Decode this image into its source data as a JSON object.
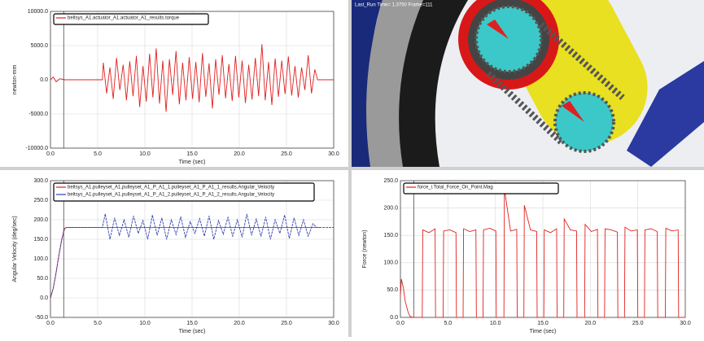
{
  "viewport": {
    "caption": "Last_Run  Time= 1.3750  Frame=111"
  },
  "chart_data": [
    {
      "type": "line",
      "ylabel": "newton-mm",
      "xlabel": "Time (sec)",
      "xlim": [
        0,
        30
      ],
      "ylim": [
        -10000,
        10000
      ],
      "xticks": [
        {
          "value": 0,
          "label": "0.0"
        },
        {
          "value": 5,
          "label": "5.0"
        },
        {
          "value": 10,
          "label": "10.0"
        },
        {
          "value": 15,
          "label": "15.0"
        },
        {
          "value": 20,
          "label": "20.0"
        },
        {
          "value": 25,
          "label": "25.0"
        },
        {
          "value": 30,
          "label": "30.0"
        }
      ],
      "yticks": [
        {
          "value": -10000,
          "label": "-10000.0"
        },
        {
          "value": -5000,
          "label": "-5000.0"
        },
        {
          "value": 0,
          "label": "0.0"
        },
        {
          "value": 5000,
          "label": "5000.0"
        },
        {
          "value": 10000,
          "label": "10000.0"
        }
      ],
      "grid": true,
      "series": [
        {
          "name": "beltsys_A1.actuator_A1.actuator_A1_results.torque",
          "color": "#e02020",
          "x": [
            0,
            0.3,
            0.6,
            1.0,
            1.5,
            2,
            3,
            4,
            5,
            5.5,
            5.6,
            5.95,
            6.3,
            6.65,
            7.0,
            7.35,
            7.7,
            8.05,
            8.4,
            8.75,
            9.1,
            9.45,
            9.8,
            10.15,
            10.5,
            10.85,
            11.2,
            11.55,
            11.9,
            12.25,
            12.6,
            12.95,
            13.3,
            13.65,
            14.0,
            14.35,
            14.7,
            15.05,
            15.4,
            15.75,
            16.1,
            16.45,
            16.8,
            17.15,
            17.5,
            17.85,
            18.2,
            18.55,
            18.9,
            19.25,
            19.6,
            19.95,
            20.3,
            20.65,
            21.0,
            21.35,
            21.7,
            22.05,
            22.4,
            22.75,
            23.1,
            23.45,
            23.8,
            24.15,
            24.5,
            24.85,
            25.2,
            25.55,
            25.9,
            26.25,
            26.6,
            26.95,
            27.3,
            27.65,
            28.0,
            28.3,
            29,
            30
          ],
          "values": [
            0,
            400,
            -300,
            150,
            0,
            0,
            0,
            0,
            0,
            0,
            2500,
            -2000,
            1800,
            -2800,
            3200,
            -1500,
            2200,
            -3000,
            2700,
            -2400,
            3500,
            -4000,
            2000,
            -3200,
            3800,
            -2600,
            4600,
            -3500,
            2800,
            -4700,
            3000,
            -2200,
            4200,
            -3600,
            2500,
            -3000,
            3300,
            -2800,
            2600,
            -3300,
            3900,
            -2500,
            2400,
            -4200,
            3000,
            -2200,
            3600,
            -2700,
            2300,
            -3100,
            3500,
            -2600,
            2800,
            -3400,
            2200,
            -2900,
            3200,
            -2400,
            5200,
            -3000,
            2600,
            -3700,
            3100,
            -2500,
            2800,
            -2100,
            3400,
            -2300,
            2000,
            -2600,
            1800,
            -1500,
            3600,
            -2000,
            1500,
            0,
            0,
            0
          ]
        }
      ]
    },
    {
      "type": "line",
      "ylabel": "Angular Velocity (deg/sec)",
      "xlabel": "Time (sec)",
      "xlim": [
        0,
        30
      ],
      "ylim": [
        -50,
        300
      ],
      "xticks": [
        {
          "value": 0,
          "label": "0.0"
        },
        {
          "value": 5,
          "label": "5.0"
        },
        {
          "value": 10,
          "label": "10.0"
        },
        {
          "value": 15,
          "label": "15.0"
        },
        {
          "value": 20,
          "label": "20.0"
        },
        {
          "value": 25,
          "label": "25.0"
        },
        {
          "value": 30,
          "label": "30.0"
        }
      ],
      "yticks": [
        {
          "value": -50,
          "label": "-50.0"
        },
        {
          "value": 0,
          "label": "0.0"
        },
        {
          "value": 50,
          "label": "50.0"
        },
        {
          "value": 100,
          "label": "100.0"
        },
        {
          "value": 150,
          "label": "150.0"
        },
        {
          "value": 200,
          "label": "200.0"
        },
        {
          "value": 250,
          "label": "250.0"
        },
        {
          "value": 300,
          "label": "300.0"
        }
      ],
      "grid": true,
      "series": [
        {
          "name": "beltsys_A1.pulleyset_A1.pulleyset_A1_P_A1_1.pulleyset_A1_P_A1_1_results.Angular_Velocity",
          "color": "#e02020",
          "x": [
            0,
            0.3,
            0.6,
            0.9,
            1.2,
            1.5,
            1.7,
            2,
            5,
            10,
            15,
            20,
            25,
            28,
            28.5
          ],
          "values": [
            0,
            25,
            65,
            110,
            150,
            178,
            180,
            180,
            180,
            180,
            180,
            180,
            180,
            180,
            180
          ]
        },
        {
          "name": "beltsys_A1.pulleyset_A1.pulleyset_A1_P_A1_2.pulleyset_A1_P_A1_2_results.Angular_Velocity",
          "color": "#3040b0",
          "x": [
            0,
            0.3,
            0.6,
            0.9,
            1.2,
            1.5,
            1.7,
            2,
            5.5,
            5.8,
            6.3,
            6.8,
            7.3,
            7.8,
            8.3,
            8.8,
            9.3,
            9.8,
            10.3,
            10.8,
            11.3,
            11.8,
            12.3,
            12.8,
            13.3,
            13.8,
            14.3,
            14.8,
            15.3,
            15.8,
            16.3,
            16.8,
            17.3,
            17.8,
            18.3,
            18.8,
            19.3,
            19.8,
            20.3,
            20.8,
            21.3,
            21.8,
            22.3,
            22.8,
            23.3,
            23.8,
            24.3,
            24.8,
            25.3,
            25.8,
            26.3,
            26.8,
            27.3,
            27.8,
            28.2,
            30
          ],
          "values": [
            0,
            25,
            65,
            110,
            150,
            178,
            180,
            180,
            180,
            215,
            150,
            205,
            160,
            200,
            155,
            210,
            165,
            198,
            150,
            212,
            160,
            205,
            150,
            200,
            162,
            208,
            155,
            195,
            165,
            203,
            158,
            210,
            150,
            198,
            163,
            206,
            158,
            200,
            155,
            215,
            160,
            202,
            157,
            207,
            150,
            200,
            165,
            212,
            152,
            205,
            160,
            200,
            158,
            190,
            180,
            180
          ]
        }
      ]
    },
    {
      "type": "line",
      "ylabel": "Force (newton)",
      "xlabel": "Time (sec)",
      "xlim": [
        0,
        30
      ],
      "ylim": [
        0,
        250
      ],
      "xticks": [
        {
          "value": 0,
          "label": "0.0"
        },
        {
          "value": 5,
          "label": "5.0"
        },
        {
          "value": 10,
          "label": "10.0"
        },
        {
          "value": 15,
          "label": "15.0"
        },
        {
          "value": 20,
          "label": "20.0"
        },
        {
          "value": 25,
          "label": "25.0"
        },
        {
          "value": 30,
          "label": "30.0"
        }
      ],
      "yticks": [
        {
          "value": 0,
          "label": "0.0"
        },
        {
          "value": 50,
          "label": "50.0"
        },
        {
          "value": 100,
          "label": "100.0"
        },
        {
          "value": 150,
          "label": "150.0"
        },
        {
          "value": 200,
          "label": "200.0"
        },
        {
          "value": 250,
          "label": "250.0"
        }
      ],
      "grid": true,
      "series": [
        {
          "name": "force_i.Total_Force_On_Point.Mag",
          "color": "#e02020",
          "x": [
            0,
            0.1,
            0.3,
            0.5,
            0.8,
            1.0,
            1.3,
            2.2,
            2.3,
            2.35,
            3.0,
            3.65,
            3.7,
            4.5,
            4.55,
            5.2,
            5.85,
            5.9,
            6.6,
            6.65,
            7.3,
            7.95,
            8.0,
            8.7,
            8.75,
            9.4,
            10.05,
            10.1,
            10.9,
            10.95,
            11.6,
            12.25,
            12.3,
            13.0,
            13.05,
            13.7,
            14.35,
            14.4,
            15.1,
            15.15,
            15.8,
            16.45,
            16.5,
            17.2,
            17.25,
            17.9,
            18.55,
            18.6,
            19.4,
            19.45,
            20.1,
            20.75,
            20.8,
            21.5,
            21.55,
            22.2,
            22.85,
            22.9,
            23.6,
            23.65,
            24.3,
            24.95,
            25.0,
            25.7,
            25.75,
            26.4,
            27.05,
            27.1,
            27.9,
            27.95,
            28.6,
            29.25,
            29.3,
            30
          ],
          "values": [
            40,
            70,
            55,
            30,
            10,
            2,
            0,
            0,
            0,
            160,
            155,
            162,
            0,
            0,
            158,
            160,
            155,
            0,
            0,
            162,
            157,
            160,
            0,
            0,
            160,
            163,
            158,
            0,
            0,
            235,
            158,
            161,
            0,
            0,
            205,
            160,
            157,
            0,
            0,
            160,
            155,
            162,
            0,
            0,
            180,
            160,
            158,
            0,
            0,
            170,
            157,
            161,
            0,
            0,
            162,
            160,
            156,
            0,
            0,
            165,
            158,
            160,
            0,
            0,
            160,
            162,
            157,
            0,
            0,
            163,
            158,
            160,
            0,
            0
          ]
        }
      ]
    }
  ]
}
